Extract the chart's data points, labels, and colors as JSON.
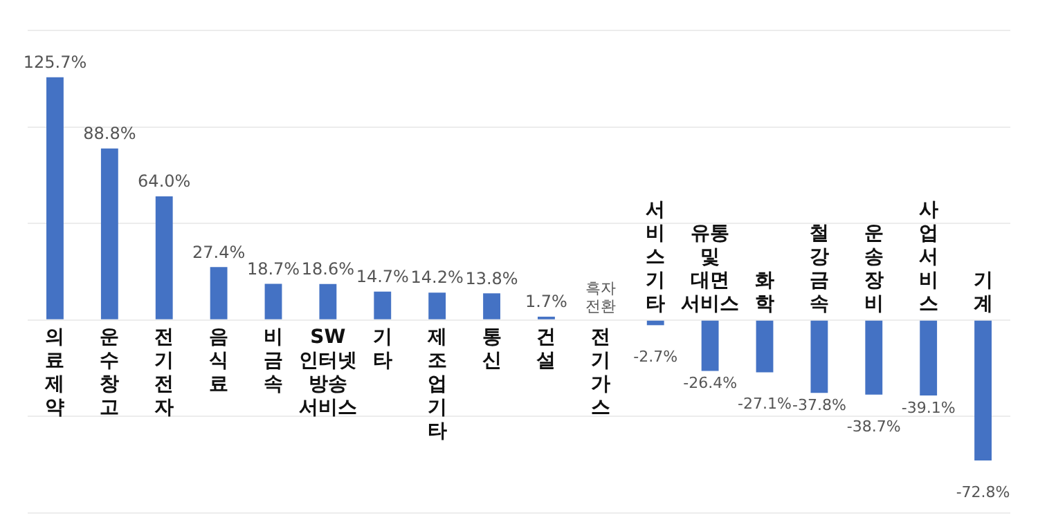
{
  "chart_data": {
    "type": "bar",
    "categories": [
      "의\n료\n제\n약",
      "운\n수\n창\n고",
      "전\n기\n전\n자",
      "음\n식\n료",
      "비\n금\n속",
      "SW\n인터넷\n방송\n서비스",
      "기\n타",
      "제\n조\n업\n기\n타",
      "통\n신",
      "건\n설",
      "전\n기\n가\n스",
      "서\n비\n스\n기\n타",
      "유통\n및\n대면\n서비스",
      "화\n학",
      "철\n강\n금\n속",
      "운\n송\n장\n비",
      "사\n업\n서\n비\n스",
      "기\n계"
    ],
    "values": [
      125.7,
      88.8,
      64.0,
      27.4,
      18.7,
      18.6,
      14.7,
      14.2,
      13.8,
      1.7,
      null,
      -2.7,
      -26.4,
      -27.1,
      -37.8,
      -38.7,
      -39.1,
      -72.8
    ],
    "value_labels": [
      "125.7%",
      "88.8%",
      "64.0%",
      "27.4%",
      "18.7%",
      "18.6%",
      "14.7%",
      "14.2%",
      "13.8%",
      "1.7%",
      "흑자\n전환",
      "-2.7%",
      "-26.4%",
      "-27.1%",
      "-37.8%",
      "-38.7%",
      "-39.1%",
      "-72.8%"
    ],
    "color": "#4472c4",
    "ylim": [
      -100,
      150
    ],
    "yticks": [
      {
        "value": -100,
        "label": null
      },
      {
        "value": -50,
        "label": null
      },
      {
        "value": 0,
        "label": null
      },
      {
        "value": 50,
        "label": null
      },
      {
        "value": 100,
        "label": null
      },
      {
        "value": 150,
        "label": null
      }
    ],
    "grid": "y",
    "tick_labels": "x",
    "legend": false
  }
}
